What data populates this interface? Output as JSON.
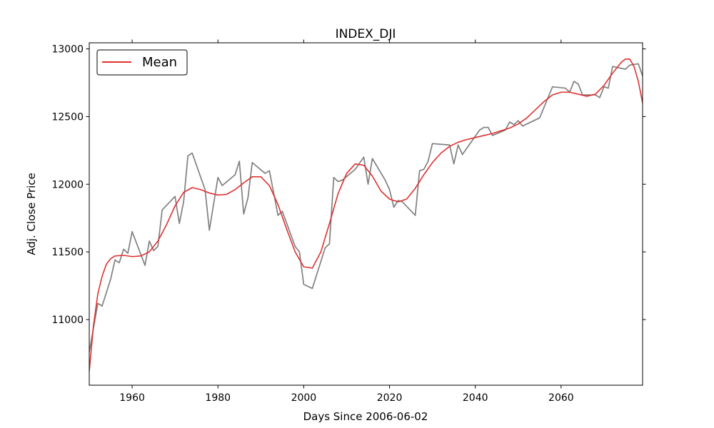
{
  "chart_data": {
    "type": "line",
    "title": "INDEX_DJI",
    "xlabel": "Days Since 2006-06-02",
    "ylabel": "Adj. Close Price",
    "xlim": [
      1950,
      2079
    ],
    "ylim": [
      10515,
      13045
    ],
    "x_ticks": [
      1960,
      1980,
      2000,
      2020,
      2040,
      2060
    ],
    "y_ticks": [
      11000,
      11500,
      12000,
      12500,
      13000
    ],
    "grid": false,
    "legend": {
      "placement": "top-left",
      "entries": [
        "Mean"
      ]
    },
    "colors": {
      "price": "#808080",
      "mean": "#e03030"
    },
    "series": [
      {
        "values": [
          [
            1950,
            10760
          ],
          [
            1952,
            11120
          ],
          [
            1953,
            11100
          ],
          [
            1955,
            11300
          ],
          [
            1956,
            11440
          ],
          [
            1957,
            11420
          ],
          [
            1958,
            11520
          ],
          [
            1959,
            11490
          ],
          [
            1960,
            11650
          ],
          [
            1963,
            11400
          ],
          [
            1964,
            11580
          ],
          [
            1965,
            11510
          ],
          [
            1966,
            11540
          ],
          [
            1967,
            11810
          ],
          [
            1970,
            11910
          ],
          [
            1971,
            11710
          ],
          [
            1972,
            11870
          ],
          [
            1973,
            12210
          ],
          [
            1974,
            12230
          ],
          [
            1977,
            11960
          ],
          [
            1978,
            11660
          ],
          [
            1980,
            12050
          ],
          [
            1981,
            11990
          ],
          [
            1984,
            12070
          ],
          [
            1985,
            12170
          ],
          [
            1986,
            11780
          ],
          [
            1987,
            11900
          ],
          [
            1988,
            12160
          ],
          [
            1991,
            12080
          ],
          [
            1992,
            12100
          ],
          [
            1994,
            11770
          ],
          [
            1995,
            11800
          ],
          [
            1998,
            11540
          ],
          [
            1999,
            11500
          ],
          [
            2000,
            11260
          ],
          [
            2002,
            11230
          ],
          [
            2005,
            11530
          ],
          [
            2006,
            11560
          ],
          [
            2007,
            12050
          ],
          [
            2008,
            12020
          ],
          [
            2009,
            12030
          ],
          [
            2012,
            12110
          ],
          [
            2014,
            12200
          ],
          [
            2015,
            12000
          ],
          [
            2016,
            12190
          ],
          [
            2019,
            12030
          ],
          [
            2020,
            11960
          ],
          [
            2021,
            11830
          ],
          [
            2022,
            11880
          ],
          [
            2023,
            11870
          ],
          [
            2026,
            11770
          ],
          [
            2027,
            12100
          ],
          [
            2028,
            12110
          ],
          [
            2029,
            12170
          ],
          [
            2030,
            12300
          ],
          [
            2034,
            12290
          ],
          [
            2035,
            12150
          ],
          [
            2036,
            12290
          ],
          [
            2037,
            12220
          ],
          [
            2041,
            12400
          ],
          [
            2042,
            12420
          ],
          [
            2043,
            12420
          ],
          [
            2044,
            12360
          ],
          [
            2047,
            12400
          ],
          [
            2048,
            12460
          ],
          [
            2049,
            12440
          ],
          [
            2050,
            12470
          ],
          [
            2051,
            12430
          ],
          [
            2055,
            12490
          ],
          [
            2058,
            12720
          ],
          [
            2061,
            12710
          ],
          [
            2062,
            12680
          ],
          [
            2063,
            12760
          ],
          [
            2064,
            12740
          ],
          [
            2065,
            12660
          ],
          [
            2068,
            12660
          ],
          [
            2069,
            12640
          ],
          [
            2070,
            12720
          ],
          [
            2071,
            12710
          ],
          [
            2072,
            12870
          ],
          [
            2075,
            12850
          ],
          [
            2076,
            12880
          ],
          [
            2078,
            12890
          ],
          [
            2079,
            12800
          ]
        ]
      },
      {
        "name": "Mean",
        "values": [
          [
            1950,
            10620
          ],
          [
            1951,
            10960
          ],
          [
            1952,
            11190
          ],
          [
            1953,
            11320
          ],
          [
            1954,
            11410
          ],
          [
            1955,
            11450
          ],
          [
            1956,
            11470
          ],
          [
            1958,
            11475
          ],
          [
            1960,
            11465
          ],
          [
            1962,
            11470
          ],
          [
            1964,
            11500
          ],
          [
            1966,
            11580
          ],
          [
            1968,
            11700
          ],
          [
            1970,
            11840
          ],
          [
            1972,
            11940
          ],
          [
            1974,
            11975
          ],
          [
            1976,
            11960
          ],
          [
            1978,
            11935
          ],
          [
            1980,
            11920
          ],
          [
            1982,
            11925
          ],
          [
            1984,
            11960
          ],
          [
            1986,
            12010
          ],
          [
            1988,
            12055
          ],
          [
            1990,
            12055
          ],
          [
            1992,
            11990
          ],
          [
            1994,
            11850
          ],
          [
            1996,
            11670
          ],
          [
            1998,
            11500
          ],
          [
            2000,
            11390
          ],
          [
            2002,
            11380
          ],
          [
            2004,
            11500
          ],
          [
            2006,
            11710
          ],
          [
            2008,
            11930
          ],
          [
            2010,
            12080
          ],
          [
            2012,
            12150
          ],
          [
            2014,
            12140
          ],
          [
            2016,
            12060
          ],
          [
            2018,
            11950
          ],
          [
            2020,
            11890
          ],
          [
            2022,
            11870
          ],
          [
            2024,
            11890
          ],
          [
            2026,
            11970
          ],
          [
            2028,
            12070
          ],
          [
            2030,
            12160
          ],
          [
            2032,
            12230
          ],
          [
            2034,
            12280
          ],
          [
            2036,
            12310
          ],
          [
            2038,
            12330
          ],
          [
            2040,
            12345
          ],
          [
            2042,
            12360
          ],
          [
            2044,
            12375
          ],
          [
            2046,
            12395
          ],
          [
            2048,
            12415
          ],
          [
            2050,
            12445
          ],
          [
            2052,
            12490
          ],
          [
            2054,
            12550
          ],
          [
            2056,
            12610
          ],
          [
            2058,
            12660
          ],
          [
            2060,
            12680
          ],
          [
            2062,
            12680
          ],
          [
            2064,
            12665
          ],
          [
            2066,
            12650
          ],
          [
            2068,
            12665
          ],
          [
            2070,
            12730
          ],
          [
            2072,
            12820
          ],
          [
            2074,
            12900
          ],
          [
            2075,
            12925
          ],
          [
            2076,
            12925
          ],
          [
            2077,
            12870
          ],
          [
            2078,
            12760
          ],
          [
            2079,
            12600
          ]
        ]
      }
    ]
  }
}
